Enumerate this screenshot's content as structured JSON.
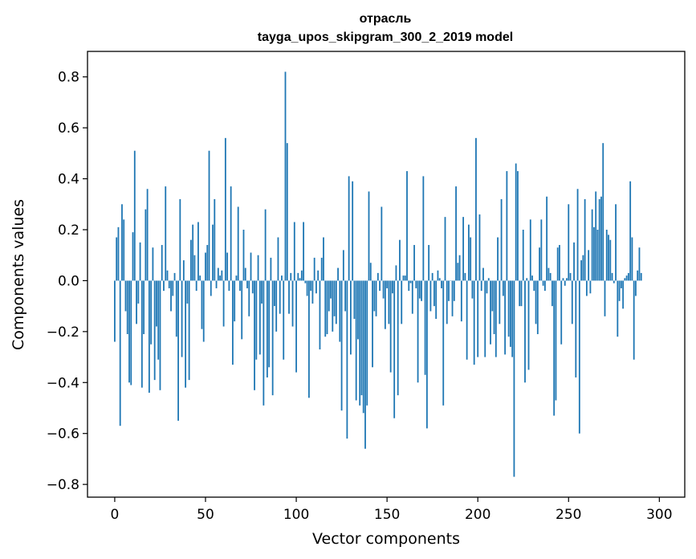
{
  "chart_data": {
    "type": "bar",
    "title_line1": "отрасль",
    "title_line2": "tayga_upos_skipgram_300_2_2019 model",
    "xlabel": "Vector components",
    "ylabel": "Components values",
    "xlim": [
      -15,
      314
    ],
    "ylim": [
      -0.85,
      0.9
    ],
    "x_ticks": [
      0,
      50,
      100,
      150,
      200,
      250,
      300
    ],
    "x_tick_labels": [
      "0",
      "50",
      "100",
      "150",
      "200",
      "250",
      "300"
    ],
    "y_ticks": [
      0.8,
      0.6,
      0.4,
      0.2,
      0.0,
      -0.2,
      -0.4,
      -0.6,
      -0.8
    ],
    "y_tick_labels": [
      "0.8",
      "0.6",
      "0.4",
      "0.2",
      "0.0",
      "−0.2",
      "−0.4",
      "−0.6",
      "−0.8"
    ],
    "bar_color": "#1f77b4",
    "values": [
      -0.24,
      0.17,
      0.21,
      -0.57,
      0.3,
      0.24,
      -0.12,
      -0.21,
      -0.4,
      -0.41,
      0.19,
      0.51,
      -0.17,
      -0.09,
      0.15,
      -0.42,
      -0.21,
      0.28,
      0.36,
      -0.44,
      -0.25,
      0.13,
      -0.39,
      -0.18,
      -0.31,
      -0.43,
      0.14,
      -0.04,
      0.37,
      0.04,
      -0.03,
      -0.12,
      -0.06,
      0.03,
      -0.22,
      -0.55,
      0.32,
      -0.3,
      0.08,
      -0.42,
      -0.09,
      -0.39,
      0.16,
      0.22,
      0.1,
      -0.04,
      0.23,
      0.02,
      -0.19,
      -0.24,
      0.11,
      0.14,
      0.51,
      -0.06,
      0.22,
      0.32,
      -0.03,
      0.05,
      0.02,
      0.04,
      -0.18,
      0.56,
      0.11,
      -0.04,
      0.37,
      -0.33,
      -0.16,
      0.02,
      0.29,
      -0.04,
      -0.23,
      0.2,
      0.05,
      -0.03,
      -0.14,
      0.11,
      -0.05,
      -0.43,
      -0.31,
      0.1,
      -0.29,
      -0.09,
      -0.49,
      0.28,
      -0.38,
      -0.34,
      0.09,
      -0.45,
      -0.1,
      -0.2,
      0.17,
      -0.13,
      0.02,
      -0.31,
      0.82,
      0.54,
      -0.13,
      0.03,
      -0.18,
      0.23,
      -0.36,
      0.03,
      0.01,
      0.04,
      0.23,
      -0.01,
      -0.06,
      -0.46,
      -0.04,
      -0.09,
      0.09,
      -0.05,
      0.04,
      -0.27,
      0.09,
      0.17,
      -0.22,
      -0.21,
      -0.12,
      -0.07,
      -0.2,
      -0.14,
      -0.17,
      0.05,
      -0.24,
      -0.51,
      0.12,
      -0.12,
      -0.62,
      0.41,
      -0.29,
      0.39,
      -0.15,
      -0.47,
      -0.23,
      -0.49,
      -0.45,
      -0.52,
      -0.66,
      -0.49,
      0.35,
      0.07,
      -0.34,
      -0.12,
      -0.14,
      0.03,
      -0.04,
      0.29,
      -0.07,
      -0.19,
      -0.03,
      -0.17,
      -0.36,
      -0.05,
      -0.54,
      0.06,
      -0.45,
      0.16,
      -0.17,
      0.02,
      0.02,
      0.43,
      -0.04,
      -0.01,
      -0.13,
      0.14,
      -0.03,
      -0.4,
      -0.07,
      -0.08,
      0.41,
      -0.37,
      -0.58,
      0.14,
      -0.12,
      0.03,
      -0.1,
      -0.15,
      0.04,
      0.01,
      -0.03,
      -0.49,
      0.25,
      -0.17,
      -0.08,
      0.0,
      -0.14,
      -0.08,
      0.37,
      0.07,
      0.1,
      -0.16,
      0.25,
      0.03,
      -0.31,
      0.22,
      0.17,
      -0.07,
      -0.33,
      0.56,
      -0.3,
      0.26,
      -0.04,
      0.05,
      -0.3,
      -0.05,
      0.01,
      -0.25,
      -0.12,
      -0.21,
      -0.3,
      0.17,
      -0.17,
      0.32,
      -0.06,
      -0.29,
      0.43,
      -0.22,
      -0.26,
      -0.3,
      -0.77,
      0.46,
      0.43,
      -0.1,
      -0.1,
      0.2,
      -0.4,
      0.01,
      -0.35,
      0.24,
      0.02,
      -0.04,
      -0.17,
      -0.21,
      0.13,
      0.24,
      -0.02,
      -0.04,
      0.33,
      0.05,
      0.03,
      -0.1,
      -0.53,
      -0.47,
      0.13,
      0.14,
      -0.25,
      0.01,
      -0.02,
      0.01,
      0.3,
      0.03,
      -0.17,
      0.15,
      -0.38,
      0.36,
      -0.6,
      0.08,
      0.1,
      0.32,
      -0.06,
      0.12,
      -0.05,
      0.28,
      0.21,
      0.35,
      0.2,
      0.32,
      0.33,
      0.54,
      -0.14,
      0.2,
      0.18,
      0.16,
      0.03,
      -0.01,
      0.3,
      -0.22,
      -0.08,
      -0.03,
      -0.11,
      0.01,
      0.02,
      0.03,
      0.39,
      0.17,
      -0.31,
      -0.06,
      0.04,
      0.13,
      0.03
    ]
  }
}
